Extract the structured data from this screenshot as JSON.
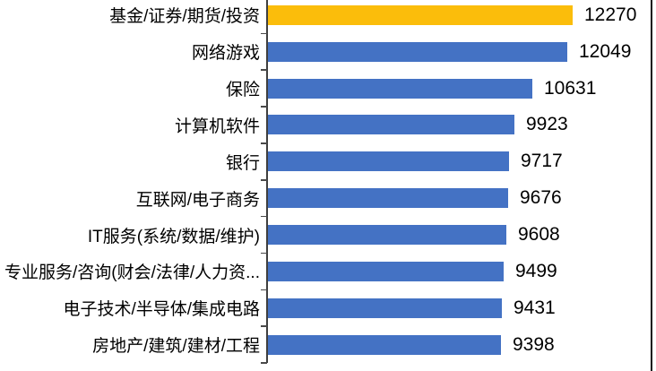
{
  "chart_data": {
    "type": "bar",
    "orientation": "horizontal",
    "title": "",
    "xlabel": "",
    "ylabel": "",
    "grid": false,
    "legend": false,
    "data_labels_shown": true,
    "xlim": [
      0,
      12270
    ],
    "categories": [
      "基金/证券/期货/投资",
      "网络游戏",
      "保险",
      "计算机软件",
      "银行",
      "互联网/电子商务",
      "IT服务(系统/数据/维护)",
      "专业服务/咨询(财会/法律/人力资...",
      "电子技术/半导体/集成电路",
      "房地产/建筑/建材/工程"
    ],
    "values": [
      12270,
      12049,
      10631,
      9923,
      9717,
      9676,
      9608,
      9499,
      9431,
      9398
    ],
    "highlight_index": 0,
    "colors": {
      "bar_highlight": "#FBBD0B",
      "bar_default": "#4472C4",
      "axis": "#3F3F3F",
      "text": "#000000",
      "right_border": "#141414",
      "background": "#FFFFFF"
    }
  }
}
